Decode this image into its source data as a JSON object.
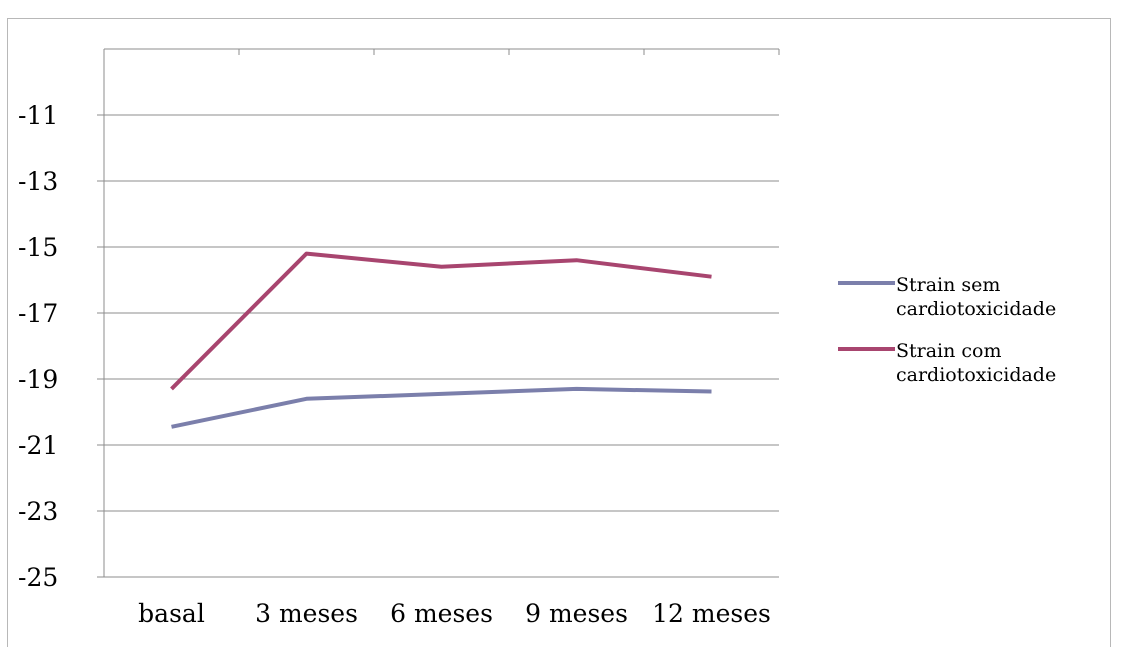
{
  "chart_data": {
    "type": "line",
    "title": "",
    "xlabel": "",
    "ylabel": "",
    "categories": [
      "basal",
      "3 meses",
      "6 meses",
      "9 meses",
      "12 meses"
    ],
    "ylim": [
      -25,
      -9
    ],
    "yticks": [
      -11,
      -13,
      -15,
      -17,
      -19,
      -21,
      -23,
      -25
    ],
    "grid": "horizontal",
    "legend_position": "right",
    "series": [
      {
        "name_lines": [
          "Strain sem",
          "cardiotoxicidade"
        ],
        "color": "#7b7fab",
        "values": [
          -20.45,
          -19.6,
          -19.45,
          -19.3,
          -19.38
        ]
      },
      {
        "name_lines": [
          "Strain com",
          "cardiotoxicidade"
        ],
        "color": "#a8456f",
        "values": [
          -19.3,
          -15.2,
          -15.6,
          -15.4,
          -15.9
        ]
      }
    ]
  }
}
